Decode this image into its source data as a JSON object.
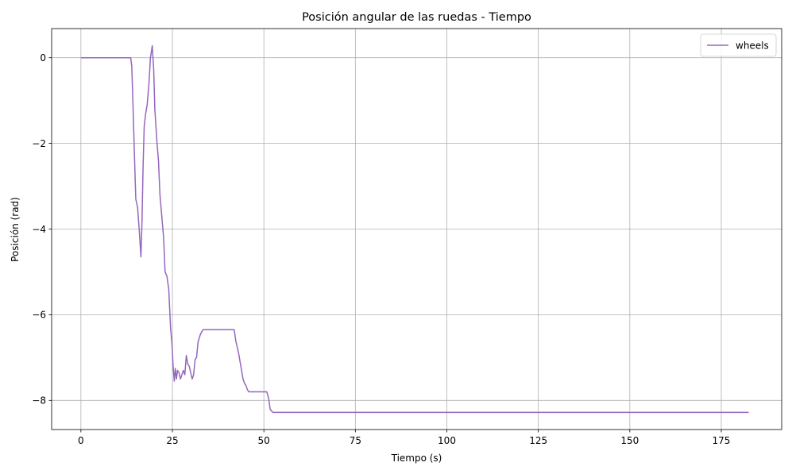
{
  "chart_data": {
    "type": "line",
    "title": "Posición angular de las ruedas - Tiempo",
    "xlabel": "Tiempo (s)",
    "ylabel": "Posición (rad)",
    "xlim": [
      -8.0,
      191.5
    ],
    "ylim": [
      -8.68,
      0.68
    ],
    "xticks": [
      0,
      25,
      50,
      75,
      100,
      125,
      150,
      175
    ],
    "yticks": [
      0,
      -2,
      -4,
      -6,
      -8
    ],
    "grid": true,
    "legend_position": "top-right",
    "series": [
      {
        "name": "wheels",
        "color": "#9467bd",
        "x": [
          0,
          13.6,
          13.9,
          14.2,
          14.6,
          15.0,
          15.5,
          16.0,
          16.4,
          16.7,
          17.0,
          17.3,
          17.7,
          18.1,
          18.6,
          19.0,
          19.5,
          19.9,
          20.2,
          20.5,
          20.8,
          21.2,
          21.6,
          22.1,
          22.6,
          23.0,
          23.5,
          24.0,
          24.5,
          24.9,
          25.2,
          25.5,
          25.8,
          26.1,
          26.4,
          26.8,
          27.2,
          27.6,
          28.0,
          28.4,
          28.8,
          29.2,
          29.6,
          30.0,
          30.4,
          30.8,
          31.2,
          31.6,
          32.0,
          32.3,
          32.7,
          33.0,
          33.4,
          33.8,
          34.2,
          34.6,
          35.0,
          36.0,
          38.0,
          40.0,
          41.9,
          42.3,
          42.7,
          43.1,
          43.5,
          43.9,
          44.3,
          44.7,
          45.1,
          45.5,
          45.9,
          46.3,
          46.7,
          47.0,
          47.5,
          48.0,
          50.0,
          50.8,
          51.3,
          51.7,
          52.1,
          52.5,
          53.0,
          53.5,
          60.0,
          100.0,
          150.0,
          182.5
        ],
        "y": [
          0,
          0,
          -0.2,
          -1.0,
          -2.2,
          -3.3,
          -3.5,
          -4.1,
          -4.65,
          -3.8,
          -2.5,
          -1.6,
          -1.3,
          -1.1,
          -0.6,
          0.0,
          0.28,
          -0.3,
          -1.2,
          -1.6,
          -2.0,
          -2.4,
          -3.2,
          -3.7,
          -4.2,
          -5.0,
          -5.1,
          -5.4,
          -6.3,
          -6.7,
          -7.2,
          -7.55,
          -7.25,
          -7.5,
          -7.3,
          -7.35,
          -7.5,
          -7.4,
          -7.3,
          -7.4,
          -6.95,
          -7.15,
          -7.2,
          -7.35,
          -7.5,
          -7.4,
          -7.05,
          -7.0,
          -6.65,
          -6.55,
          -6.45,
          -6.4,
          -6.35,
          -6.35,
          -6.35,
          -6.35,
          -6.35,
          -6.35,
          -6.35,
          -6.35,
          -6.35,
          -6.6,
          -6.75,
          -6.9,
          -7.1,
          -7.3,
          -7.5,
          -7.6,
          -7.65,
          -7.75,
          -7.8,
          -7.8,
          -7.8,
          -7.8,
          -7.8,
          -7.8,
          -7.8,
          -7.8,
          -7.95,
          -8.2,
          -8.25,
          -8.28,
          -8.28,
          -8.28,
          -8.28,
          -8.28,
          -8.28,
          -8.28
        ]
      }
    ]
  }
}
